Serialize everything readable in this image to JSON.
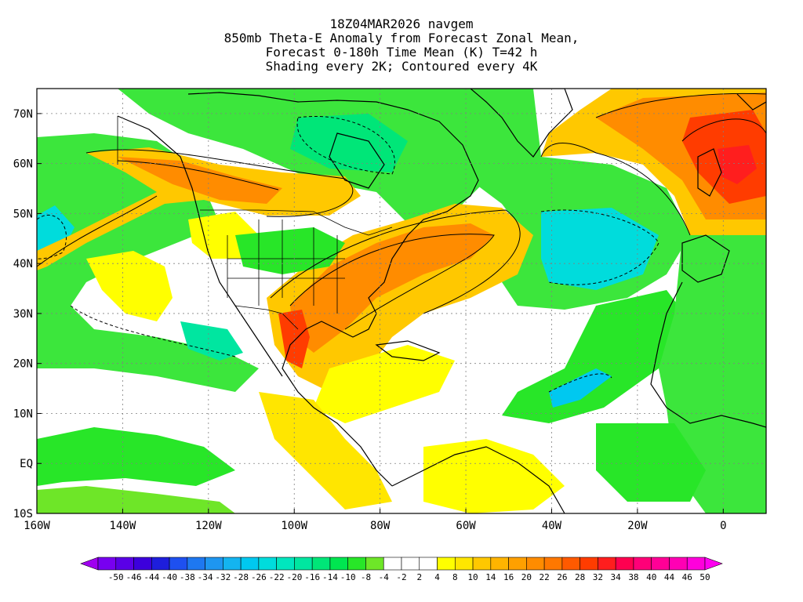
{
  "title": {
    "line1": "18Z04MAR2026 navgem",
    "line2": "850mb Theta-E Anomaly from Forecast Zonal Mean,",
    "line3": "Forecast 0-180h Time Mean (K) T=42 h",
    "line4": "Shading every 2K; Contoured every 4K"
  },
  "map": {
    "lon_range": [
      -160,
      10
    ],
    "lat_range": [
      -10,
      75
    ],
    "lon_ticks": [
      {
        "value": -160,
        "label": "160W"
      },
      {
        "value": -140,
        "label": "140W"
      },
      {
        "value": -120,
        "label": "120W"
      },
      {
        "value": -100,
        "label": "100W"
      },
      {
        "value": -80,
        "label": "80W"
      },
      {
        "value": -60,
        "label": "60W"
      },
      {
        "value": -40,
        "label": "40W"
      },
      {
        "value": -20,
        "label": "20W"
      },
      {
        "value": 0,
        "label": "0"
      }
    ],
    "lat_ticks": [
      {
        "value": 70,
        "label": "70N"
      },
      {
        "value": 60,
        "label": "60N"
      },
      {
        "value": 50,
        "label": "50N"
      },
      {
        "value": 40,
        "label": "40N"
      },
      {
        "value": 30,
        "label": "30N"
      },
      {
        "value": 20,
        "label": "20N"
      },
      {
        "value": 10,
        "label": "10N"
      },
      {
        "value": 0,
        "label": "EQ"
      },
      {
        "value": -10,
        "label": "10S"
      }
    ]
  },
  "colorbar": {
    "labels": [
      "-50",
      "-46",
      "-44",
      "-40",
      "-38",
      "-34",
      "-32",
      "-28",
      "-26",
      "-22",
      "-20",
      "-16",
      "-14",
      "-10",
      "-8",
      "-4",
      "-2",
      "2",
      "4",
      "8",
      "10",
      "14",
      "16",
      "20",
      "22",
      "26",
      "28",
      "32",
      "34",
      "38",
      "40",
      "44",
      "46",
      "50"
    ],
    "colors": [
      "#a000f0",
      "#7800f0",
      "#5a00e6",
      "#3c00dc",
      "#1e1edc",
      "#1e50f0",
      "#1e78f0",
      "#1e96f0",
      "#14b4f0",
      "#00c8f0",
      "#00dcdc",
      "#00e6be",
      "#00e6a0",
      "#00e678",
      "#00e650",
      "#28e628",
      "#6ee628",
      "#ffffff",
      "#ffffff",
      "#ffffff",
      "#ffff00",
      "#ffe600",
      "#ffc800",
      "#ffb400",
      "#ffa000",
      "#ff8c00",
      "#ff7800",
      "#ff5a00",
      "#ff3c00",
      "#ff1e1e",
      "#ff0050",
      "#ff0078",
      "#ff0096",
      "#ff00b4",
      "#ff00dc",
      "#ff00f0"
    ]
  }
}
